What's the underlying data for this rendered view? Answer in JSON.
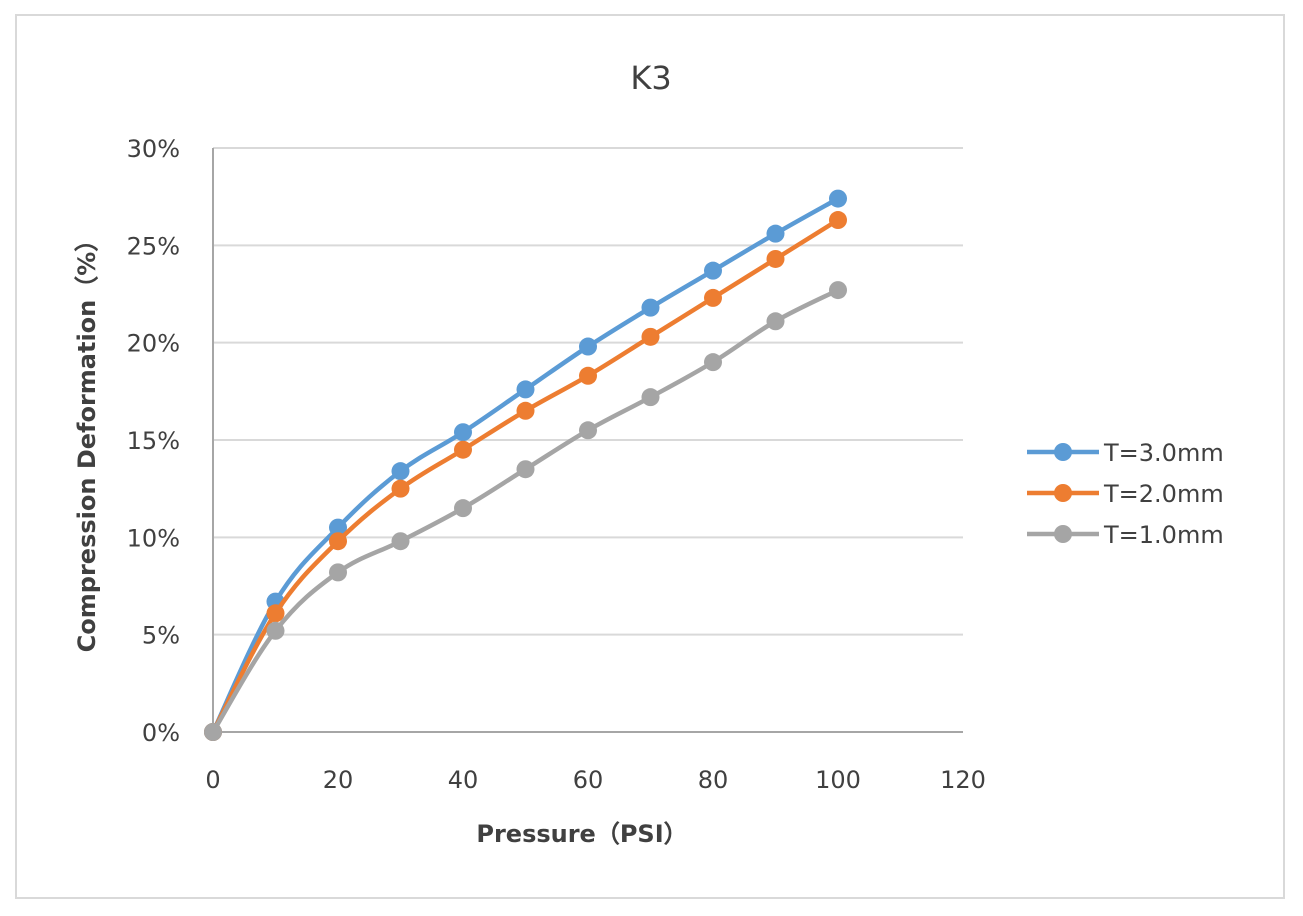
{
  "chart_data": {
    "type": "line",
    "title": "K3",
    "xlabel": "Pressure（PSI）",
    "ylabel": "Compression Deformation（%）",
    "x": [
      0,
      10,
      20,
      30,
      40,
      50,
      60,
      70,
      80,
      90,
      100
    ],
    "xlim": [
      0,
      120
    ],
    "ylim": [
      0,
      0.3
    ],
    "xticks": [
      0,
      20,
      40,
      60,
      80,
      100,
      120
    ],
    "xtick_labels": [
      "0",
      "20",
      "40",
      "60",
      "80",
      "100",
      "120"
    ],
    "yticks": [
      0,
      0.05,
      0.1,
      0.15,
      0.2,
      0.25,
      0.3
    ],
    "ytick_labels": [
      "0%",
      "5%",
      "10%",
      "15%",
      "20%",
      "25%",
      "30%"
    ],
    "grid": "horizontal",
    "smooth": true,
    "legend_position": "right",
    "series": [
      {
        "name": "T=3.0mm",
        "color": "#5b9bd5",
        "values": [
          0,
          0.067,
          0.105,
          0.134,
          0.154,
          0.176,
          0.198,
          0.218,
          0.237,
          0.256,
          0.274
        ]
      },
      {
        "name": "T=2.0mm",
        "color": "#ed7d31",
        "values": [
          0,
          0.061,
          0.098,
          0.125,
          0.145,
          0.165,
          0.183,
          0.203,
          0.223,
          0.243,
          0.263
        ]
      },
      {
        "name": "T=1.0mm",
        "color": "#a5a5a5",
        "values": [
          0,
          0.052,
          0.082,
          0.098,
          0.115,
          0.135,
          0.155,
          0.172,
          0.19,
          0.211,
          0.227
        ]
      }
    ]
  }
}
